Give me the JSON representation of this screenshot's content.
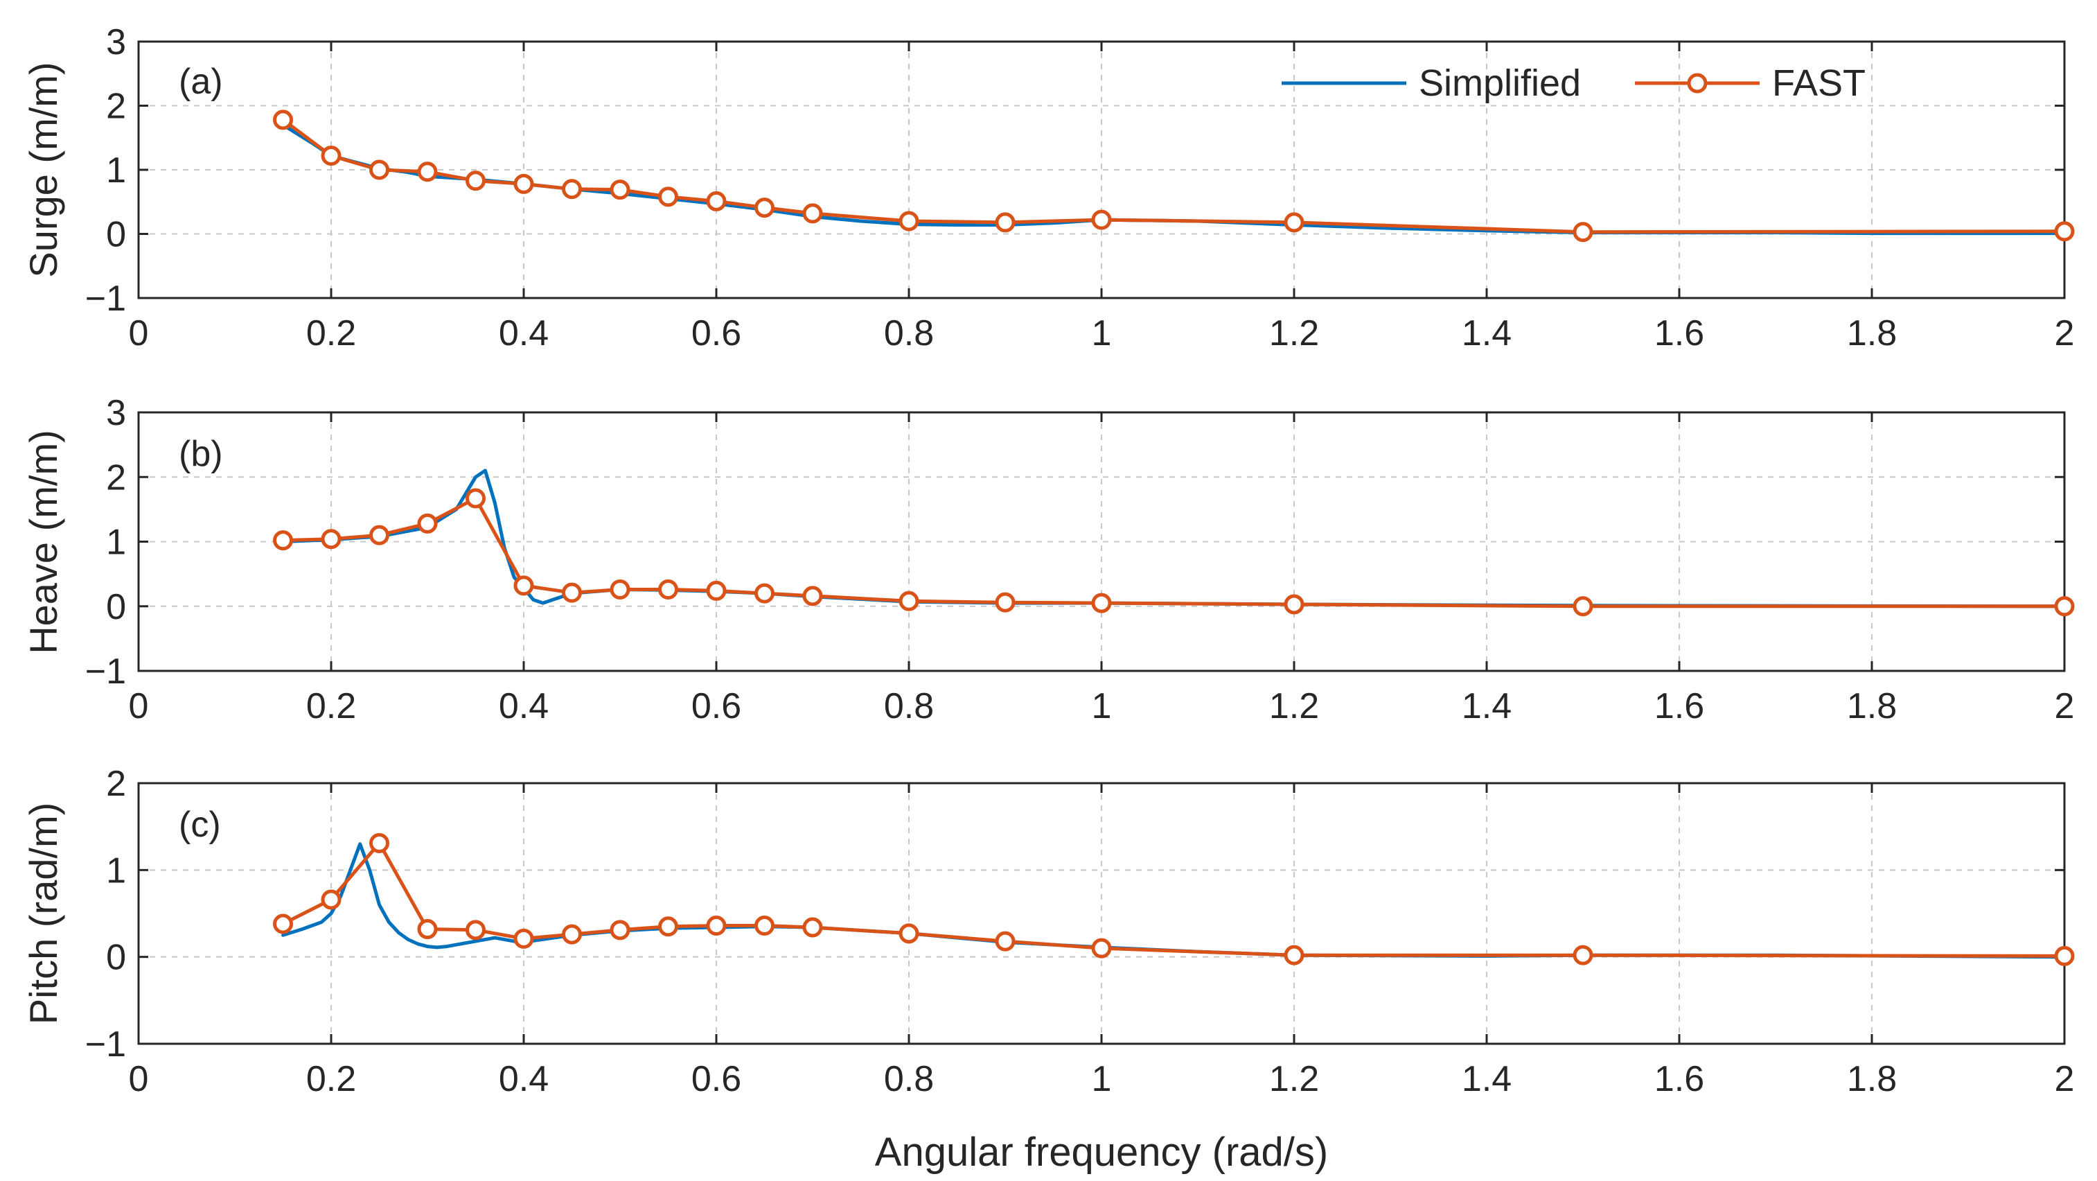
{
  "chart_data": [
    {
      "type": "line",
      "panel_label": "(a)",
      "ylabel": "Surge (m/m)",
      "xlabel": "",
      "xlim": [
        0,
        2
      ],
      "ylim": [
        -1,
        3
      ],
      "xticks": [
        "0",
        "0.2",
        "0.4",
        "0.6",
        "0.8",
        "1",
        "1.2",
        "1.4",
        "1.6",
        "1.8",
        "2"
      ],
      "yticks": [
        "−1",
        "0",
        "1",
        "2",
        "3"
      ],
      "grid": true,
      "legend": {
        "placement": "top-right",
        "entries": [
          "Simplified",
          "FAST"
        ]
      },
      "series": [
        {
          "name": "Simplified",
          "color": "#0072BD",
          "marker": "none",
          "x": [
            0.15,
            0.18,
            0.2,
            0.23,
            0.25,
            0.28,
            0.3,
            0.35,
            0.4,
            0.45,
            0.5,
            0.55,
            0.6,
            0.65,
            0.7,
            0.75,
            0.8,
            0.85,
            0.9,
            0.95,
            1.0,
            1.1,
            1.2,
            1.3,
            1.4,
            1.5,
            1.6,
            1.7,
            1.8,
            1.9,
            2.0
          ],
          "values": [
            1.7,
            1.42,
            1.22,
            1.1,
            1.02,
            0.96,
            0.9,
            0.85,
            0.78,
            0.7,
            0.63,
            0.55,
            0.47,
            0.38,
            0.27,
            0.2,
            0.15,
            0.14,
            0.14,
            0.17,
            0.22,
            0.2,
            0.14,
            0.09,
            0.05,
            0.02,
            0.02,
            0.02,
            0.01,
            0.01,
            0.01
          ]
        },
        {
          "name": "FAST",
          "color": "#D95319",
          "marker": "circle",
          "x": [
            0.15,
            0.2,
            0.25,
            0.3,
            0.35,
            0.4,
            0.45,
            0.5,
            0.55,
            0.6,
            0.65,
            0.7,
            0.8,
            0.9,
            1.0,
            1.2,
            1.5,
            2.0
          ],
          "values": [
            1.78,
            1.22,
            1.0,
            0.97,
            0.83,
            0.78,
            0.7,
            0.69,
            0.58,
            0.51,
            0.41,
            0.32,
            0.2,
            0.18,
            0.22,
            0.18,
            0.03,
            0.04
          ]
        }
      ]
    },
    {
      "type": "line",
      "panel_label": "(b)",
      "ylabel": "Heave (m/m)",
      "xlabel": "",
      "xlim": [
        0,
        2
      ],
      "ylim": [
        -1,
        3
      ],
      "xticks": [
        "0",
        "0.2",
        "0.4",
        "0.6",
        "0.8",
        "1",
        "1.2",
        "1.4",
        "1.6",
        "1.8",
        "2"
      ],
      "yticks": [
        "−1",
        "0",
        "1",
        "2",
        "3"
      ],
      "grid": true,
      "series": [
        {
          "name": "Simplified",
          "color": "#0072BD",
          "marker": "none",
          "x": [
            0.15,
            0.2,
            0.25,
            0.3,
            0.33,
            0.35,
            0.36,
            0.37,
            0.38,
            0.39,
            0.4,
            0.41,
            0.42,
            0.43,
            0.45,
            0.5,
            0.55,
            0.6,
            0.65,
            0.7,
            0.8,
            0.9,
            1.0,
            1.2,
            1.5,
            2.0
          ],
          "values": [
            1.0,
            1.03,
            1.08,
            1.22,
            1.5,
            2.0,
            2.1,
            1.6,
            0.9,
            0.45,
            0.28,
            0.1,
            0.05,
            0.1,
            0.2,
            0.26,
            0.25,
            0.23,
            0.2,
            0.15,
            0.07,
            0.05,
            0.05,
            0.03,
            0.01,
            0.0
          ]
        },
        {
          "name": "FAST",
          "color": "#D95319",
          "marker": "circle",
          "x": [
            0.15,
            0.2,
            0.25,
            0.3,
            0.35,
            0.4,
            0.45,
            0.5,
            0.55,
            0.6,
            0.65,
            0.7,
            0.8,
            0.9,
            1.0,
            1.2,
            1.5,
            2.0
          ],
          "values": [
            1.02,
            1.04,
            1.1,
            1.28,
            1.67,
            0.32,
            0.21,
            0.26,
            0.26,
            0.24,
            0.2,
            0.16,
            0.08,
            0.06,
            0.05,
            0.03,
            0.0,
            0.0
          ]
        }
      ]
    },
    {
      "type": "line",
      "panel_label": "(c)",
      "ylabel": "Pitch (rad/m)",
      "xlabel": "Angular frequency (rad/s)",
      "xlim": [
        0,
        2
      ],
      "ylim": [
        -1,
        2
      ],
      "xticks": [
        "0",
        "0.2",
        "0.4",
        "0.6",
        "0.8",
        "1",
        "1.2",
        "1.4",
        "1.6",
        "1.8",
        "2"
      ],
      "yticks": [
        "−1",
        "0",
        "1",
        "2"
      ],
      "grid": true,
      "series": [
        {
          "name": "Simplified",
          "color": "#0072BD",
          "marker": "none",
          "x": [
            0.15,
            0.17,
            0.19,
            0.2,
            0.21,
            0.22,
            0.23,
            0.24,
            0.25,
            0.26,
            0.27,
            0.28,
            0.29,
            0.3,
            0.31,
            0.32,
            0.33,
            0.35,
            0.37,
            0.39,
            0.4,
            0.45,
            0.5,
            0.55,
            0.6,
            0.65,
            0.7,
            0.8,
            0.9,
            1.0,
            1.1,
            1.2,
            1.4,
            1.5,
            1.7,
            2.0
          ],
          "values": [
            0.25,
            0.32,
            0.4,
            0.5,
            0.7,
            1.0,
            1.3,
            1.0,
            0.6,
            0.4,
            0.28,
            0.2,
            0.15,
            0.12,
            0.11,
            0.12,
            0.14,
            0.18,
            0.22,
            0.18,
            0.17,
            0.25,
            0.3,
            0.33,
            0.34,
            0.35,
            0.34,
            0.27,
            0.17,
            0.11,
            0.06,
            0.02,
            0.01,
            0.02,
            0.02,
            0.0
          ]
        },
        {
          "name": "FAST",
          "color": "#D95319",
          "marker": "circle",
          "x": [
            0.15,
            0.2,
            0.25,
            0.3,
            0.35,
            0.4,
            0.45,
            0.5,
            0.55,
            0.6,
            0.65,
            0.7,
            0.8,
            0.9,
            1.0,
            1.2,
            1.5,
            2.0
          ],
          "values": [
            0.38,
            0.66,
            1.31,
            0.32,
            0.31,
            0.21,
            0.26,
            0.31,
            0.35,
            0.36,
            0.36,
            0.34,
            0.27,
            0.18,
            0.1,
            0.02,
            0.02,
            0.01
          ]
        }
      ]
    }
  ]
}
